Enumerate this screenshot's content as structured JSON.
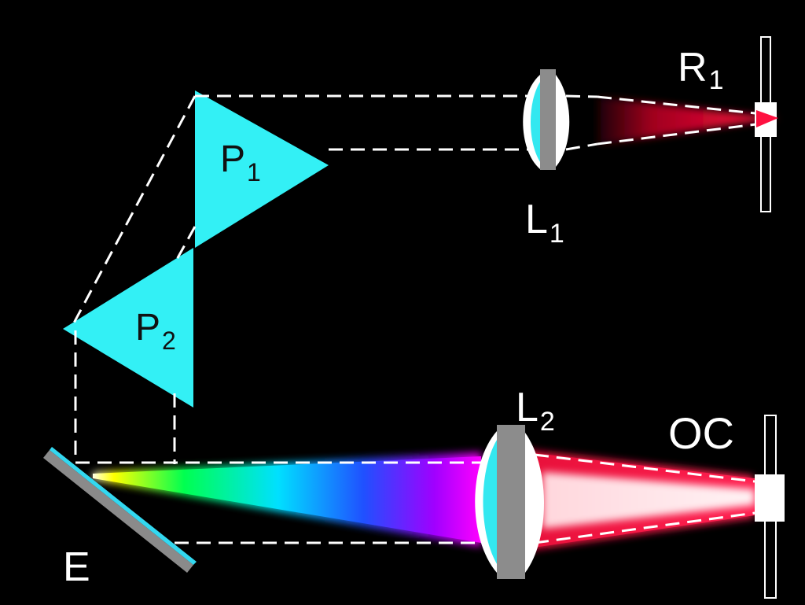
{
  "labels": {
    "p1": {
      "main": "P",
      "sub": "1"
    },
    "p2": {
      "main": "P",
      "sub": "2"
    },
    "l1": {
      "main": "L",
      "sub": "1"
    },
    "l2": {
      "main": "L",
      "sub": "2"
    },
    "r1": {
      "main": "R",
      "sub": "1"
    },
    "oc": {
      "main": "OC"
    },
    "e": {
      "main": "E"
    }
  },
  "colors": {
    "background": "#000000",
    "prism": "#33f0f5",
    "lens_glass": "#33e8f0",
    "lens_mount": "#8c8c8c",
    "beam_red": "#e0103a",
    "beam_inner": "#ffe8ea",
    "dash": "#ffffff",
    "mirror_face": "#33d8f0",
    "mirror_back": "#8a8a8a"
  }
}
